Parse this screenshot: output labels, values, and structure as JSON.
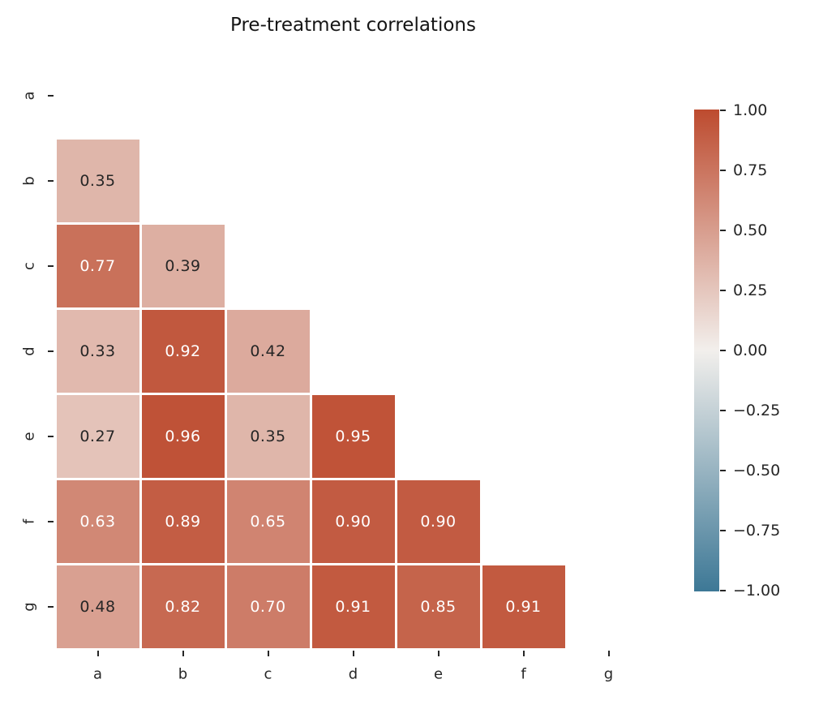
{
  "chart_data": {
    "type": "heatmap",
    "title": "Pre-treatment correlations",
    "categories": [
      "a",
      "b",
      "c",
      "d",
      "e",
      "f",
      "g"
    ],
    "rows": [
      {
        "label": "a",
        "values": [
          null,
          null,
          null,
          null,
          null,
          null,
          null
        ]
      },
      {
        "label": "b",
        "values": [
          0.35,
          null,
          null,
          null,
          null,
          null,
          null
        ]
      },
      {
        "label": "c",
        "values": [
          0.77,
          0.39,
          null,
          null,
          null,
          null,
          null
        ]
      },
      {
        "label": "d",
        "values": [
          0.33,
          0.92,
          0.42,
          null,
          null,
          null,
          null
        ]
      },
      {
        "label": "e",
        "values": [
          0.27,
          0.96,
          0.35,
          0.95,
          null,
          null,
          null
        ]
      },
      {
        "label": "f",
        "values": [
          0.63,
          0.89,
          0.65,
          0.9,
          0.9,
          null,
          null
        ]
      },
      {
        "label": "g",
        "values": [
          0.48,
          0.82,
          0.7,
          0.91,
          0.85,
          0.91,
          null
        ]
      }
    ],
    "value_decimals": 2,
    "mask": "upper-triangle-and-diagonal",
    "colorbar": {
      "ticks": [
        "1.00",
        "0.75",
        "0.50",
        "0.25",
        "0.00",
        "−0.25",
        "−0.50",
        "−0.75",
        "−1.00"
      ],
      "vmin": -1,
      "vmax": 1,
      "center": 0,
      "position": "right"
    },
    "colors": {
      "positive_end": "#bd4b2f",
      "center": "#f2efec",
      "negative_end": "#3d7896",
      "annotation_dark": "#262626",
      "annotation_light": "#ffffff",
      "tick": "#262626",
      "background": "#ffffff"
    },
    "legend_position": "right-colorbar",
    "grid": false
  }
}
